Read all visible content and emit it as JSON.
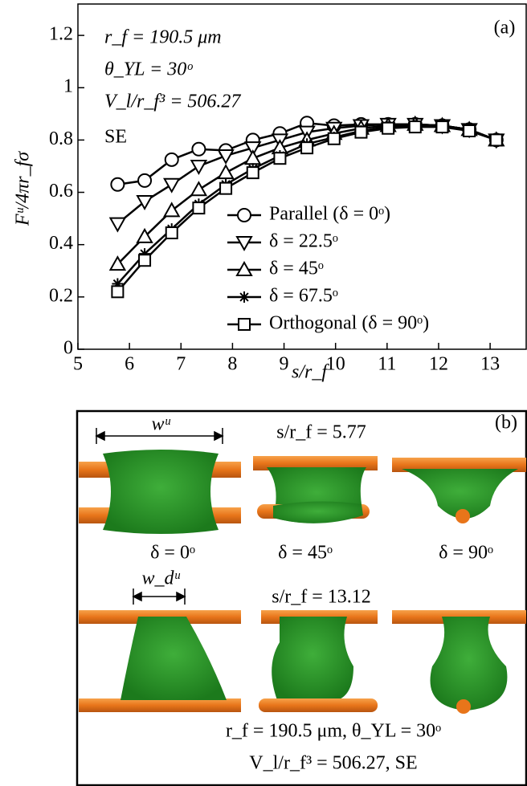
{
  "chart_data": {
    "type": "line",
    "x_label": "s/r_f",
    "y_label": "Fᵘ/4πr_fσ",
    "panel_label": "(a)",
    "annotations": [
      "r_f = 190.5 μm",
      "θ_YL = 30ᵒ",
      "V_l/r_f³ = 506.27",
      "SE"
    ],
    "x": [
      5.77,
      6.295,
      6.82,
      7.345,
      7.87,
      8.395,
      8.92,
      9.445,
      9.97,
      10.495,
      11.02,
      11.545,
      12.07,
      12.595,
      13.12
    ],
    "series": [
      {
        "name": "Parallel (δ = 0ᵒ)",
        "marker": "circle",
        "color": "#000000",
        "values": [
          0.63,
          0.645,
          0.725,
          0.765,
          0.76,
          0.8,
          0.825,
          0.865,
          0.855,
          0.86,
          0.86,
          0.86,
          0.855,
          0.84,
          0.8
        ]
      },
      {
        "name": "δ = 22.5ᵒ",
        "marker": "triangle-down",
        "color": "#000000",
        "values": [
          0.48,
          0.565,
          0.63,
          0.7,
          0.74,
          0.77,
          0.8,
          0.83,
          0.845,
          0.855,
          0.86,
          0.86,
          0.855,
          0.84,
          0.8
        ]
      },
      {
        "name": "δ = 45ᵒ",
        "marker": "triangle-up",
        "color": "#000000",
        "values": [
          0.325,
          0.43,
          0.53,
          0.61,
          0.675,
          0.73,
          0.77,
          0.8,
          0.825,
          0.845,
          0.855,
          0.86,
          0.855,
          0.84,
          0.8
        ]
      },
      {
        "name": "δ = 67.5ᵒ",
        "marker": "star",
        "color": "#000000",
        "values": [
          0.25,
          0.365,
          0.46,
          0.555,
          0.63,
          0.69,
          0.74,
          0.785,
          0.81,
          0.835,
          0.85,
          0.855,
          0.855,
          0.84,
          0.8
        ]
      },
      {
        "name": "Orthogonal (δ = 90ᵒ)",
        "marker": "square",
        "color": "#000000",
        "values": [
          0.22,
          0.34,
          0.445,
          0.54,
          0.615,
          0.675,
          0.73,
          0.77,
          0.805,
          0.83,
          0.845,
          0.85,
          0.85,
          0.835,
          0.8
        ]
      }
    ],
    "xlim": [
      5,
      13.7
    ],
    "xticks": [
      5,
      6,
      7,
      8,
      9,
      10,
      11,
      12,
      13
    ],
    "ylim": [
      0,
      1.32
    ],
    "yticks": [
      0,
      0.2,
      0.4,
      0.6,
      0.8,
      1,
      1.2
    ],
    "grid": false,
    "legend_position": "lower right"
  },
  "panel_b": {
    "label": "(b)",
    "w_u": "wᵘ",
    "s_top": "s/r_f = 5.77",
    "angles": [
      "δ = 0ᵒ",
      "δ = 45ᵒ",
      "δ = 90ᵒ"
    ],
    "w_d_u": "w_dᵘ",
    "s_bottom": "s/r_f = 13.12",
    "params_1": "r_f = 190.5 μm, θ_YL = 30ᵒ",
    "params_2": "V_l/r_f³ = 506.27, SE"
  }
}
